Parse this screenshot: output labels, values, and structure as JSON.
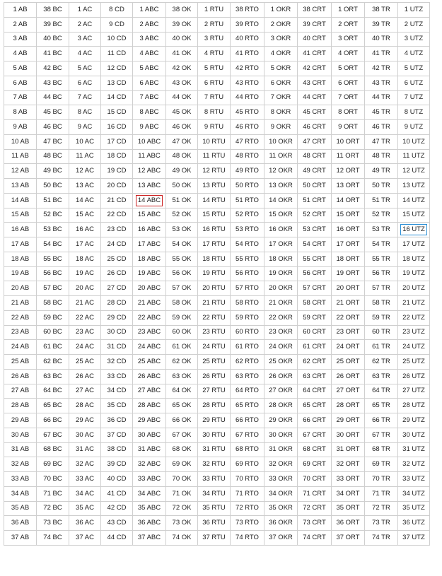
{
  "columns": [
    {
      "start": 1,
      "suffix": "AB"
    },
    {
      "start": 38,
      "suffix": "BC"
    },
    {
      "start": 1,
      "suffix": "AC"
    },
    {
      "start": 8,
      "suffix": "CD"
    },
    {
      "start": 1,
      "suffix": "ABC"
    },
    {
      "start": 38,
      "suffix": "OK"
    },
    {
      "start": 1,
      "suffix": "RTU"
    },
    {
      "start": 38,
      "suffix": "RTO"
    },
    {
      "start": 1,
      "suffix": "OKR"
    },
    {
      "start": 38,
      "suffix": "CRT"
    },
    {
      "start": 1,
      "suffix": "ORT"
    },
    {
      "start": 38,
      "suffix": "TR"
    },
    {
      "start": 1,
      "suffix": "UTZ"
    }
  ],
  "row_count": 37,
  "selected": [
    {
      "row": 13,
      "col": 4,
      "style": "red",
      "label": "14 ABC"
    },
    {
      "row": 15,
      "col": 12,
      "style": "blue",
      "label": "16 UTZ"
    }
  ],
  "colors": {
    "border": "#cfcfcf",
    "text": "#222222",
    "highlight_red": "#cc2222",
    "highlight_blue": "#2a8fd6"
  }
}
